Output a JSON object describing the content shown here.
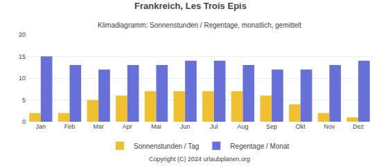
{
  "chart_data": {
    "type": "bar",
    "title": "Frankreich, Les Trois Epis",
    "subtitle": "Klimadiagramm: Sonnenstunden / Regentage, monatlich, gemittelt",
    "categories": [
      "Jan",
      "Feb",
      "Mar",
      "Apr",
      "Mai",
      "Jun",
      "Jul",
      "Aug",
      "Sep",
      "Okt",
      "Nov",
      "Dez"
    ],
    "series": [
      {
        "name": "Sonnenstunden / Tag",
        "color": "#f0c030",
        "values": [
          2,
          2,
          5,
          6,
          7,
          7,
          7,
          7,
          6,
          4,
          2,
          1
        ]
      },
      {
        "name": "Regentage / Monat",
        "color": "#6670d8",
        "values": [
          15,
          13,
          12,
          13,
          13,
          14,
          14,
          13,
          12,
          12,
          13,
          14
        ]
      }
    ],
    "ylim": [
      0,
      20
    ],
    "yticks": [
      0,
      5,
      10,
      15,
      20
    ],
    "grid": true,
    "legend": "bottom",
    "annotations": [
      "Copyright (C) 2024 urlaubplanen.org"
    ]
  }
}
